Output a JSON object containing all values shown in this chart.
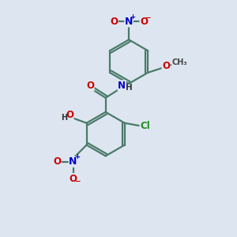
{
  "background_color": "#dde6f0",
  "bond_color": "#4a7a6a",
  "bond_width": 1.6,
  "atom_colors": {
    "O": "#cc0000",
    "N": "#0000cc",
    "Cl": "#228B22",
    "C": "#4a7a6a",
    "H": "#333333"
  },
  "font_size": 8.5,
  "figsize": [
    3.0,
    3.0
  ],
  "dpi": 100,
  "xlim": [
    -2.5,
    3.5
  ],
  "ylim": [
    -4.5,
    4.5
  ]
}
